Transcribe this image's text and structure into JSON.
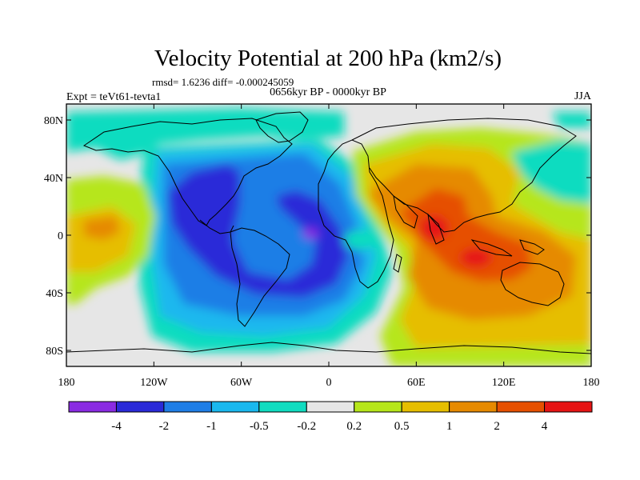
{
  "title": "Velocity Potential at 200 hPa (km2/s)",
  "stats_line": "rmsd= 1.6236 diff= -0.000245059",
  "experiment": "Expt = teVt61-tevta1",
  "period": "0656kyr BP - 0000kyr BP",
  "season": "JJA",
  "map": {
    "lat_ticks": [
      "80N",
      "40N",
      "0",
      "40S",
      "80S"
    ],
    "lon_ticks": [
      "180",
      "120W",
      "60W",
      "0",
      "60E",
      "120E",
      "180"
    ],
    "background_color": "#e6e6e6"
  },
  "colorbar": {
    "colors": [
      "#8a2be2",
      "#2a2ad8",
      "#1f7ee6",
      "#1ab8ee",
      "#10dcc0",
      "#e6e6e6",
      "#b6e61a",
      "#e6be00",
      "#e68a00",
      "#e65000",
      "#e61414"
    ],
    "labels": [
      "-4",
      "-2",
      "-1",
      "-0.5",
      "-0.2",
      "0.2",
      "0.5",
      "1",
      "2",
      "4"
    ]
  }
}
